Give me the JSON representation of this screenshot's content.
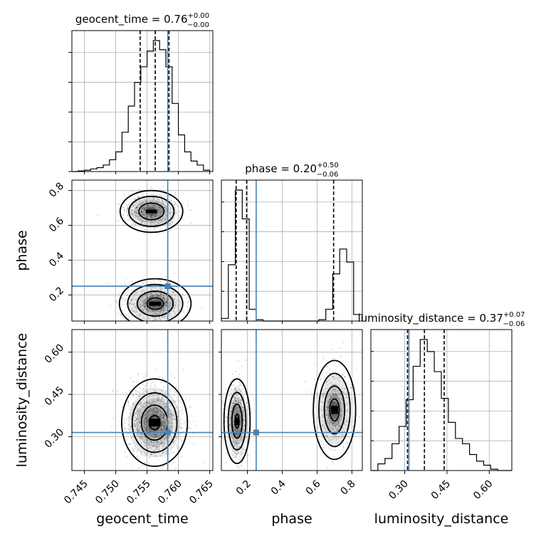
{
  "chart_data": {
    "type": "corner",
    "grid": true,
    "truth": {
      "geocent_time": 0.7583,
      "phase": 0.25,
      "luminosity_distance": 0.315
    },
    "truth_color": "#4682b4",
    "parameters": [
      {
        "name": "geocent_time",
        "axis_label": "geocent_time",
        "title_main": "geocent_time = 0.76",
        "title_sup": "+0.00",
        "title_sub": "−0.00",
        "range": [
          0.743,
          0.7655
        ],
        "ticks": [
          0.745,
          0.75,
          0.755,
          0.76,
          0.765
        ],
        "tick_labels": [
          "0.745",
          "0.750",
          "0.755",
          "0.760",
          "0.765"
        ],
        "quantiles": [
          0.7539,
          0.7563,
          0.7585
        ],
        "hist_edges": [
          0.743,
          0.744,
          0.745,
          0.746,
          0.747,
          0.748,
          0.749,
          0.75,
          0.751,
          0.752,
          0.753,
          0.754,
          0.755,
          0.756,
          0.757,
          0.758,
          0.759,
          0.76,
          0.761,
          0.762,
          0.763,
          0.764,
          0.765
        ],
        "hist_values": [
          0,
          0.5,
          1,
          2,
          3,
          5,
          9,
          15,
          30,
          50,
          68,
          80,
          92,
          100,
          93,
          80,
          52,
          28,
          15,
          8,
          5,
          1
        ]
      },
      {
        "name": "phase",
        "axis_label": "phase",
        "title_main": "phase = 0.20",
        "title_sup": "+0.50",
        "title_sub": "−0.06",
        "range": [
          0.05,
          0.86
        ],
        "ticks": [
          0.2,
          0.4,
          0.6,
          0.8
        ],
        "tick_labels": [
          "0.2",
          "0.4",
          "0.6",
          "0.8"
        ],
        "quantiles": [
          0.135,
          0.195,
          0.695
        ],
        "hist_edges": [
          0.05,
          0.09,
          0.13,
          0.17,
          0.21,
          0.25,
          0.29,
          0.33,
          0.37,
          0.41,
          0.45,
          0.49,
          0.53,
          0.57,
          0.61,
          0.65,
          0.69,
          0.73,
          0.77,
          0.81,
          0.86
        ],
        "hist_values": [
          2,
          43,
          100,
          78,
          9,
          1,
          0,
          0,
          0,
          0,
          0,
          0,
          0,
          0,
          1,
          9,
          36,
          55,
          45,
          5
        ]
      },
      {
        "name": "luminosity_distance",
        "axis_label": "luminosity_distance",
        "title_main": "luminosity_distance = 0.37",
        "title_sup": "+0.07",
        "title_sub": "−0.06",
        "range": [
          0.18,
          0.68
        ],
        "ticks": [
          0.3,
          0.45,
          0.6
        ],
        "tick_labels": [
          "0.30",
          "0.45",
          "0.60"
        ],
        "quantiles": [
          0.31,
          0.37,
          0.44
        ],
        "hist_edges": [
          0.18,
          0.205,
          0.23,
          0.255,
          0.28,
          0.305,
          0.33,
          0.355,
          0.38,
          0.405,
          0.43,
          0.455,
          0.48,
          0.505,
          0.53,
          0.555,
          0.58,
          0.605,
          0.63,
          0.655,
          0.68
        ],
        "hist_values": [
          0,
          5,
          9,
          20,
          33,
          53,
          78,
          98,
          89,
          74,
          54,
          36,
          24,
          20,
          12,
          7,
          4,
          1,
          0,
          0
        ]
      }
    ],
    "pairs": [
      {
        "x": "geocent_time",
        "y": "phase",
        "blobs": [
          {
            "cx": 0.7557,
            "cy": 0.68,
            "sx": 0.002,
            "sy": 0.048,
            "n": 650,
            "levels": [
              1.0,
              1.8,
              2.5
            ]
          },
          {
            "cx": 0.7563,
            "cy": 0.15,
            "sx": 0.0022,
            "sy": 0.055,
            "n": 650,
            "levels": [
              0.6,
              1.3,
              2.0,
              2.6
            ]
          }
        ]
      },
      {
        "x": "geocent_time",
        "y": "luminosity_distance",
        "blobs": [
          {
            "cx": 0.7562,
            "cy": 0.35,
            "sx": 0.0021,
            "sy": 0.062,
            "n": 1200,
            "levels": [
              0.4,
              1.0,
              1.7,
              2.5
            ]
          }
        ]
      },
      {
        "x": "phase",
        "y": "luminosity_distance",
        "blobs": [
          {
            "cx": 0.14,
            "cy": 0.355,
            "sx": 0.03,
            "sy": 0.06,
            "n": 650,
            "levels": [
              0.4,
              1.0,
              1.7,
              2.5
            ]
          },
          {
            "cx": 0.7,
            "cy": 0.395,
            "sx": 0.045,
            "sy": 0.065,
            "n": 600,
            "levels": [
              0.6,
              1.3,
              2.0,
              2.7
            ]
          }
        ]
      }
    ]
  }
}
